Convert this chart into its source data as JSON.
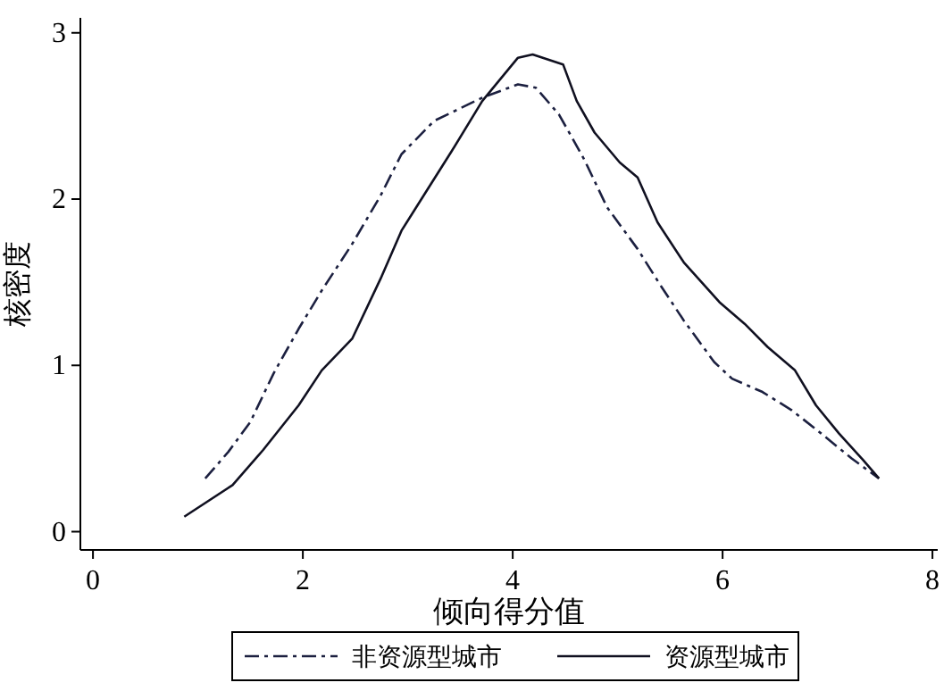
{
  "chart_data": {
    "type": "line",
    "xlabel": "倾向得分值",
    "ylabel": "核密度",
    "xlim": [
      -0.12,
      8.05
    ],
    "ylim": [
      -0.11,
      3.09
    ],
    "xticks": [
      0,
      2,
      4,
      6,
      8
    ],
    "yticks": [
      0,
      1,
      2,
      3
    ],
    "grid": false,
    "legend": "bottom",
    "marker": "none",
    "series": [
      {
        "name": "非资源型城市",
        "color": "#1c2040",
        "line_style": "dashed",
        "x": [
          1.07,
          1.29,
          1.5,
          1.72,
          1.96,
          2.18,
          2.47,
          2.74,
          2.94,
          3.25,
          3.71,
          4.05,
          4.22,
          4.44,
          4.68,
          4.9,
          5.19,
          5.41,
          5.63,
          5.92,
          6.09,
          6.38,
          6.66,
          6.94,
          7.23,
          7.49
        ],
        "values": [
          0.32,
          0.48,
          0.66,
          0.95,
          1.22,
          1.45,
          1.73,
          2.02,
          2.27,
          2.47,
          2.61,
          2.69,
          2.67,
          2.51,
          2.24,
          1.95,
          1.7,
          1.48,
          1.27,
          1.02,
          0.92,
          0.84,
          0.73,
          0.59,
          0.44,
          0.32
        ]
      },
      {
        "name": "资源型城市",
        "color": "#101020",
        "line_style": "solid",
        "x": [
          0.87,
          1.33,
          1.62,
          1.96,
          2.18,
          2.47,
          2.74,
          2.94,
          3.15,
          3.42,
          3.71,
          4.05,
          4.19,
          4.48,
          4.61,
          4.78,
          5.02,
          5.19,
          5.38,
          5.63,
          5.97,
          6.21,
          6.43,
          6.69,
          6.89,
          7.11,
          7.34,
          7.49
        ],
        "values": [
          0.09,
          0.28,
          0.49,
          0.76,
          0.97,
          1.16,
          1.52,
          1.81,
          2.02,
          2.29,
          2.59,
          2.85,
          2.87,
          2.81,
          2.59,
          2.4,
          2.22,
          2.13,
          1.86,
          1.62,
          1.38,
          1.25,
          1.11,
          0.97,
          0.76,
          0.59,
          0.43,
          0.32
        ]
      }
    ]
  }
}
